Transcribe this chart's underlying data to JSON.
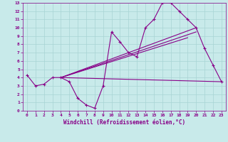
{
  "xlabel": "Windchill (Refroidissement éolien,°C)",
  "bg_color": "#c8eaea",
  "grid_color": "#a8d4d4",
  "line_color": "#880088",
  "xlim": [
    -0.5,
    23.5
  ],
  "ylim": [
    0,
    13
  ],
  "xticks": [
    0,
    1,
    2,
    3,
    4,
    5,
    6,
    7,
    8,
    9,
    10,
    11,
    12,
    13,
    14,
    15,
    16,
    17,
    18,
    19,
    20,
    21,
    22,
    23
  ],
  "yticks": [
    0,
    1,
    2,
    3,
    4,
    5,
    6,
    7,
    8,
    9,
    10,
    11,
    12,
    13
  ],
  "line1_x": [
    0,
    1,
    2,
    3,
    4,
    5,
    6,
    7,
    8,
    9,
    10,
    11,
    12,
    13,
    14,
    15,
    16,
    17,
    18,
    19,
    20,
    21,
    22,
    23
  ],
  "line1_y": [
    4.3,
    3.0,
    3.2,
    4.0,
    4.0,
    3.5,
    1.5,
    0.7,
    0.3,
    3.0,
    9.5,
    8.3,
    7.0,
    6.5,
    10.0,
    11.0,
    13.0,
    13.0,
    12.0,
    11.0,
    10.0,
    7.5,
    5.5,
    3.5
  ],
  "line2_x": [
    4,
    23
  ],
  "line2_y": [
    4.0,
    3.5
  ],
  "line3_x": [
    4,
    20
  ],
  "line3_y": [
    4.0,
    10.0
  ],
  "line4_x": [
    4,
    20
  ],
  "line4_y": [
    4.0,
    9.5
  ],
  "line5_x": [
    4,
    19
  ],
  "line5_y": [
    4.0,
    8.8
  ]
}
